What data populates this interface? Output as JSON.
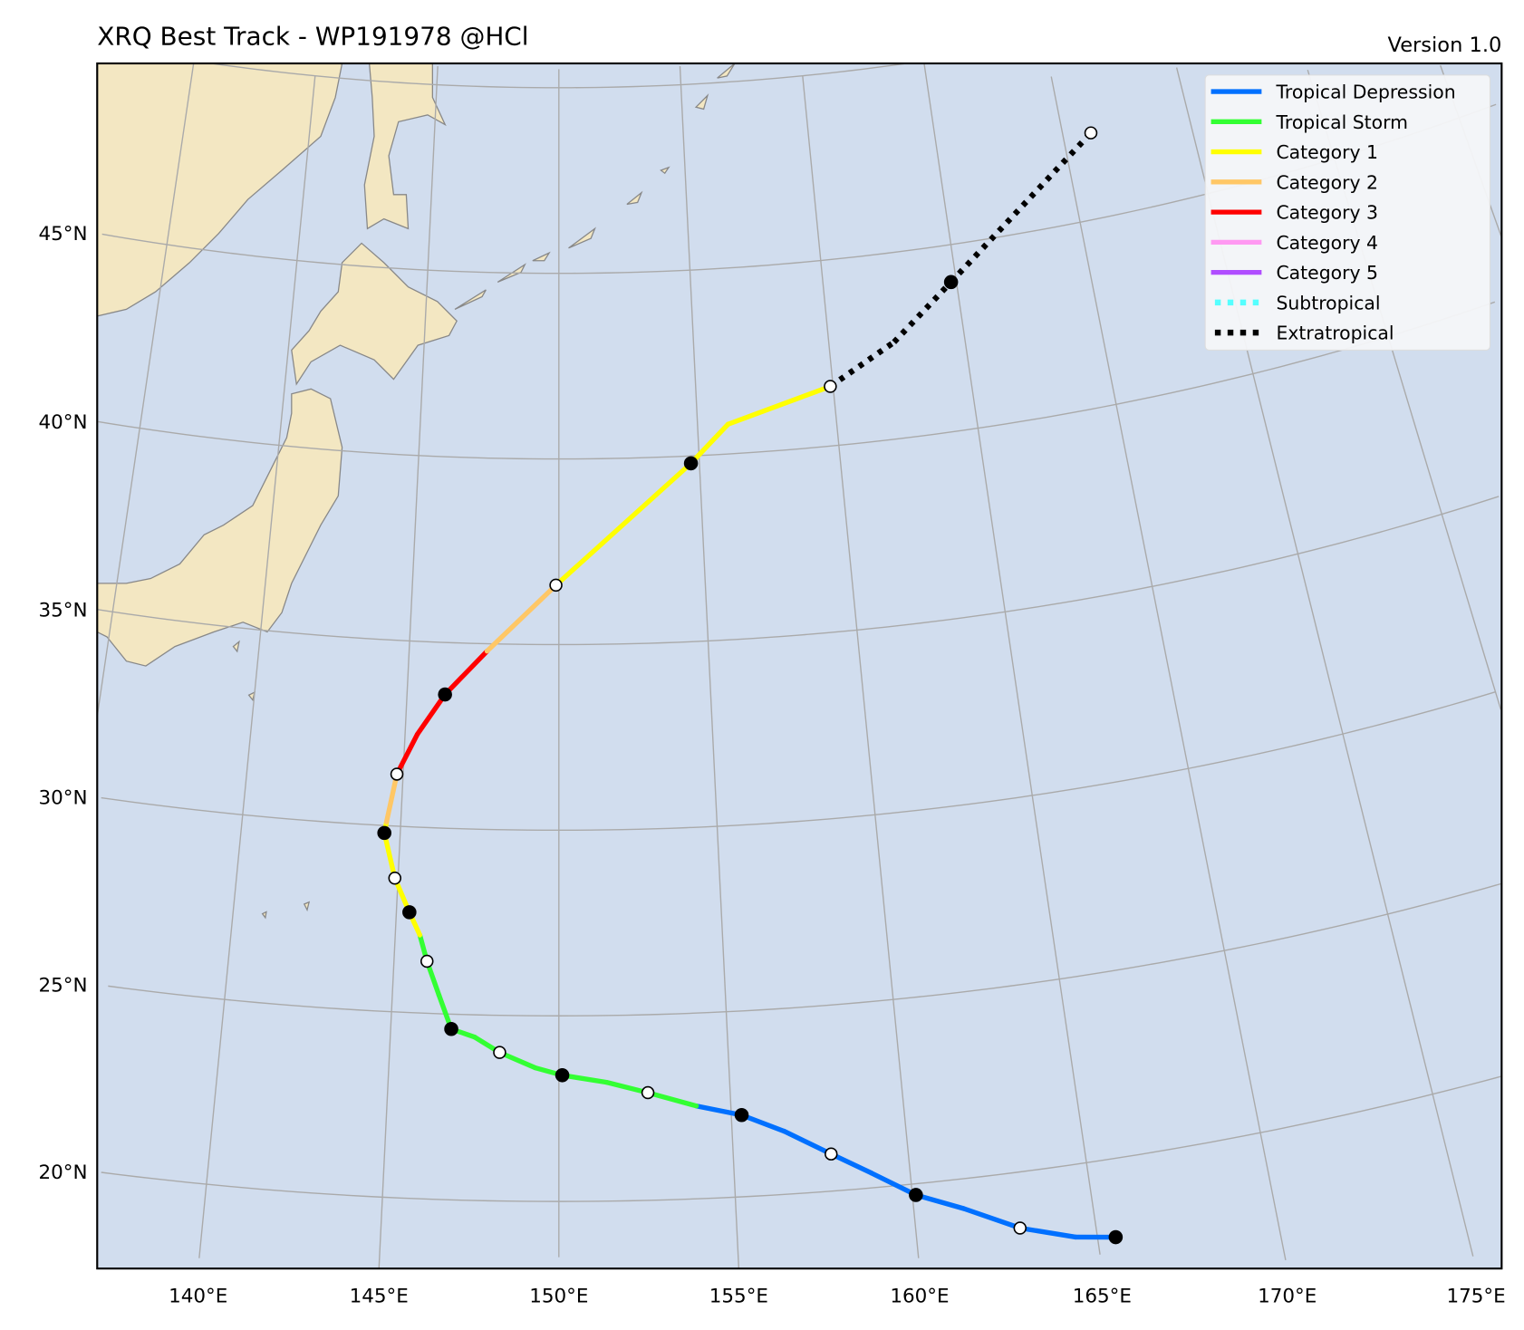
{
  "chart_data": {
    "type": "map-track",
    "title": "XRQ Best Track - WP191978  @HCl",
    "version_label": "Version 1.0",
    "lon_ticks": [
      140,
      145,
      150,
      155,
      160,
      165,
      170,
      175
    ],
    "lat_ticks": [
      20,
      25,
      30,
      35,
      40,
      45
    ],
    "lon_tick_labels": [
      "140°E",
      "145°E",
      "150°E",
      "155°E",
      "160°E",
      "165°E",
      "170°E",
      "175°E"
    ],
    "lat_tick_labels": [
      "20°N",
      "25°N",
      "30°N",
      "35°N",
      "40°N",
      "45°N"
    ],
    "grid": true,
    "legend_position": "top-right",
    "colors": {
      "ocean": "#d1ddee",
      "land": "#f3e7c2",
      "coast": "#888888",
      "grid": "#aaaaaa"
    },
    "legend": [
      {
        "key": "TD",
        "label": "Tropical Depression",
        "color": "#0070ff",
        "style": "solid"
      },
      {
        "key": "TS",
        "label": "Tropical Storm",
        "color": "#33ff33",
        "style": "solid"
      },
      {
        "key": "C1",
        "label": "Category 1",
        "color": "#ffff00",
        "style": "solid"
      },
      {
        "key": "C2",
        "label": "Category 2",
        "color": "#ffc766",
        "style": "solid"
      },
      {
        "key": "C3",
        "label": "Category 3",
        "color": "#ff0000",
        "style": "solid"
      },
      {
        "key": "C4",
        "label": "Category 4",
        "color": "#ff99f2",
        "style": "solid"
      },
      {
        "key": "C5",
        "label": "Category 5",
        "color": "#b04dff",
        "style": "solid"
      },
      {
        "key": "SS",
        "label": "Subtropical",
        "color": "#55ffff",
        "style": "dotted"
      },
      {
        "key": "EX",
        "label": "Extratropical",
        "color": "#000000",
        "style": "dotted"
      }
    ],
    "track": [
      {
        "lon": 165.5,
        "lat": 17.9,
        "cat": "TD",
        "marker": "filled"
      },
      {
        "lon": 164.4,
        "lat": 18.06,
        "cat": "TD",
        "marker": null
      },
      {
        "lon": 162.9,
        "lat": 18.5,
        "cat": "TD",
        "marker": "open"
      },
      {
        "lon": 161.4,
        "lat": 19.2,
        "cat": "TD",
        "marker": null
      },
      {
        "lon": 160.1,
        "lat": 19.7,
        "cat": "TD",
        "marker": "filled"
      },
      {
        "lon": 158.9,
        "lat": 20.4,
        "cat": "TD",
        "marker": null
      },
      {
        "lon": 157.8,
        "lat": 21.0,
        "cat": "TD",
        "marker": "open"
      },
      {
        "lon": 156.5,
        "lat": 21.7,
        "cat": "TD",
        "marker": null
      },
      {
        "lon": 155.3,
        "lat": 22.2,
        "cat": "TD",
        "marker": "filled"
      },
      {
        "lon": 154.0,
        "lat": 22.5,
        "cat": "TS",
        "marker": null
      },
      {
        "lon": 152.6,
        "lat": 22.9,
        "cat": "TS",
        "marker": "open"
      },
      {
        "lon": 151.4,
        "lat": 23.2,
        "cat": "TS",
        "marker": null
      },
      {
        "lon": 150.1,
        "lat": 23.4,
        "cat": "TS",
        "marker": "filled"
      },
      {
        "lon": 149.3,
        "lat": 23.6,
        "cat": "TS",
        "marker": null
      },
      {
        "lon": 148.25,
        "lat": 24.0,
        "cat": "TS",
        "marker": "open"
      },
      {
        "lon": 147.5,
        "lat": 24.4,
        "cat": "TS",
        "marker": null
      },
      {
        "lon": 146.8,
        "lat": 24.6,
        "cat": "TS",
        "marker": "filled"
      },
      {
        "lon": 146.4,
        "lat": 25.5,
        "cat": "TS",
        "marker": null
      },
      {
        "lon": 146.0,
        "lat": 26.4,
        "cat": "TS",
        "marker": "open"
      },
      {
        "lon": 145.75,
        "lat": 27.1,
        "cat": "C1",
        "marker": null
      },
      {
        "lon": 145.4,
        "lat": 27.7,
        "cat": "C1",
        "marker": "filled"
      },
      {
        "lon": 144.9,
        "lat": 28.6,
        "cat": "C1",
        "marker": "open"
      },
      {
        "lon": 144.5,
        "lat": 29.8,
        "cat": "C1",
        "marker": "filled"
      },
      {
        "lon": 144.55,
        "lat": 30.1,
        "cat": "C2",
        "marker": null
      },
      {
        "lon": 144.8,
        "lat": 31.4,
        "cat": "C3",
        "marker": "open"
      },
      {
        "lon": 145.4,
        "lat": 32.5,
        "cat": "C3",
        "marker": null
      },
      {
        "lon": 146.25,
        "lat": 33.6,
        "cat": "C3",
        "marker": "filled"
      },
      {
        "lon": 147.6,
        "lat": 34.8,
        "cat": "C2",
        "marker": null
      },
      {
        "lon": 149.9,
        "lat": 36.6,
        "cat": "C1",
        "marker": "open"
      },
      {
        "lon": 154.7,
        "lat": 39.8,
        "cat": "C1",
        "marker": "filled"
      },
      {
        "lon": 156.1,
        "lat": 40.8,
        "cat": "C1",
        "marker": null
      },
      {
        "lon": 159.9,
        "lat": 41.6,
        "cat": "EX",
        "marker": "open"
      },
      {
        "lon": 162.4,
        "lat": 42.6,
        "cat": "EX",
        "marker": null
      },
      {
        "lon": 164.8,
        "lat": 44.0,
        "cat": "EX",
        "marker": "filled"
      },
      {
        "lon": 171.1,
        "lat": 47.3,
        "cat": "EX",
        "marker": "open"
      }
    ]
  }
}
